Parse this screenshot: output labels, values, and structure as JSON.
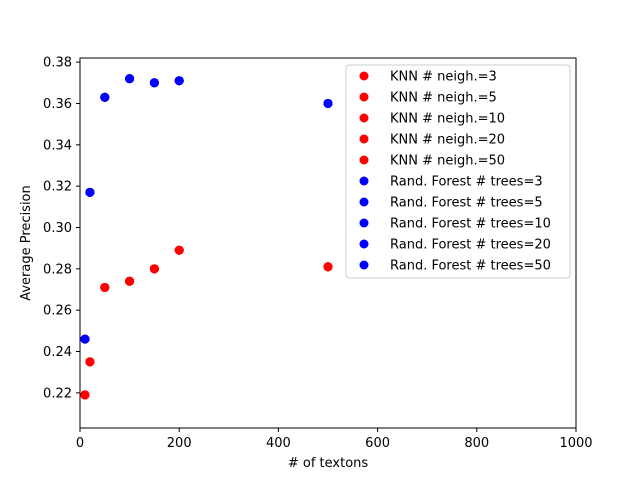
{
  "chart_data": {
    "type": "scatter",
    "title": "",
    "xlabel": "# of textons",
    "ylabel": "Average Precision",
    "xlim": [
      0,
      1000
    ],
    "ylim": [
      0.203,
      0.382
    ],
    "xticks": [
      0,
      200,
      400,
      600,
      800,
      1000
    ],
    "xtick_labels": [
      "0",
      "200",
      "400",
      "600",
      "800",
      "1000"
    ],
    "yticks": [
      0.22,
      0.24,
      0.26,
      0.28,
      0.3,
      0.32,
      0.34,
      0.36,
      0.38
    ],
    "ytick_labels": [
      "0.22",
      "0.24",
      "0.26",
      "0.28",
      "0.30",
      "0.32",
      "0.34",
      "0.36",
      "0.38"
    ],
    "grid": false,
    "legend_position": "top-right",
    "series": [
      {
        "name": "KNN # neigh.=3",
        "color": "#ff0000",
        "points": [
          [
            10,
            0.219
          ],
          [
            20,
            0.235
          ],
          [
            50,
            0.271
          ],
          [
            100,
            0.274
          ],
          [
            150,
            0.28
          ],
          [
            200,
            0.289
          ],
          [
            500,
            0.281
          ]
        ]
      },
      {
        "name": "KNN # neigh.=5",
        "color": "#ff0000",
        "points": [
          [
            10,
            0.219
          ],
          [
            20,
            0.235
          ],
          [
            50,
            0.271
          ],
          [
            100,
            0.274
          ],
          [
            150,
            0.28
          ],
          [
            200,
            0.289
          ],
          [
            500,
            0.281
          ]
        ]
      },
      {
        "name": "KNN # neigh.=10",
        "color": "#ff0000",
        "points": [
          [
            10,
            0.219
          ],
          [
            20,
            0.235
          ],
          [
            50,
            0.271
          ],
          [
            100,
            0.274
          ],
          [
            150,
            0.28
          ],
          [
            200,
            0.289
          ],
          [
            500,
            0.281
          ]
        ]
      },
      {
        "name": "KNN # neigh.=20",
        "color": "#ff0000",
        "points": [
          [
            10,
            0.219
          ],
          [
            20,
            0.235
          ],
          [
            50,
            0.271
          ],
          [
            100,
            0.274
          ],
          [
            150,
            0.28
          ],
          [
            200,
            0.289
          ],
          [
            500,
            0.281
          ]
        ]
      },
      {
        "name": "KNN # neigh.=50",
        "color": "#ff0000",
        "points": [
          [
            10,
            0.219
          ],
          [
            20,
            0.235
          ],
          [
            50,
            0.271
          ],
          [
            100,
            0.274
          ],
          [
            150,
            0.28
          ],
          [
            200,
            0.289
          ],
          [
            500,
            0.281
          ]
        ]
      },
      {
        "name": "Rand. Forest # trees=3",
        "color": "#0000ff",
        "points": [
          [
            10,
            0.246
          ],
          [
            20,
            0.317
          ],
          [
            50,
            0.363
          ],
          [
            100,
            0.372
          ],
          [
            150,
            0.37
          ],
          [
            200,
            0.371
          ],
          [
            500,
            0.36
          ]
        ]
      },
      {
        "name": "Rand. Forest # trees=5",
        "color": "#0000ff",
        "points": [
          [
            10,
            0.246
          ],
          [
            20,
            0.317
          ],
          [
            50,
            0.363
          ],
          [
            100,
            0.372
          ],
          [
            150,
            0.37
          ],
          [
            200,
            0.371
          ],
          [
            500,
            0.36
          ]
        ]
      },
      {
        "name": "Rand. Forest # trees=10",
        "color": "#0000ff",
        "points": [
          [
            10,
            0.246
          ],
          [
            20,
            0.317
          ],
          [
            50,
            0.363
          ],
          [
            100,
            0.372
          ],
          [
            150,
            0.37
          ],
          [
            200,
            0.371
          ],
          [
            500,
            0.36
          ]
        ]
      },
      {
        "name": "Rand. Forest # trees=20",
        "color": "#0000ff",
        "points": [
          [
            10,
            0.246
          ],
          [
            20,
            0.317
          ],
          [
            50,
            0.363
          ],
          [
            100,
            0.372
          ],
          [
            150,
            0.37
          ],
          [
            200,
            0.371
          ],
          [
            500,
            0.36
          ]
        ]
      },
      {
        "name": "Rand. Forest # trees=50",
        "color": "#0000ff",
        "points": [
          [
            10,
            0.246
          ],
          [
            20,
            0.317
          ],
          [
            50,
            0.363
          ],
          [
            100,
            0.372
          ],
          [
            150,
            0.37
          ],
          [
            200,
            0.371
          ],
          [
            500,
            0.36
          ]
        ]
      }
    ]
  }
}
